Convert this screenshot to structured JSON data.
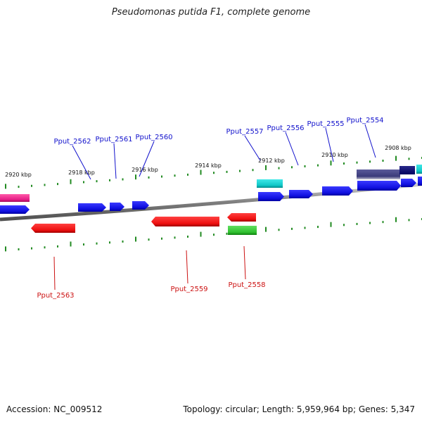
{
  "title": "Pseudomonas putida F1, complete genome",
  "footer": {
    "accession": "Accession: NC_009512",
    "info": "Topology: circular; Length: 5,959,964 bp; Genes: 5,347"
  },
  "colors": {
    "forward_gene": "#1a1aee",
    "reverse_gene": "#ee1111",
    "tick": "#228b22",
    "backbone": "#888888",
    "forward_label": "#1111cc",
    "reverse_label": "#cc1111"
  },
  "ticks": [
    {
      "label": "2920 kbp"
    },
    {
      "label": "2918 kbp"
    },
    {
      "label": "2916 kbp"
    },
    {
      "label": "2914 kbp"
    },
    {
      "label": "2912 kbp"
    },
    {
      "label": "2910 kbp"
    },
    {
      "label": "2908 kbp"
    }
  ],
  "forward_labels": [
    "Pput_2562",
    "Pput_2561",
    "Pput_2560",
    "Pput_2557",
    "Pput_2556",
    "Pput_2555",
    "Pput_2554"
  ],
  "reverse_labels": [
    "Pput_2563",
    "Pput_2559",
    "Pput_2558"
  ]
}
